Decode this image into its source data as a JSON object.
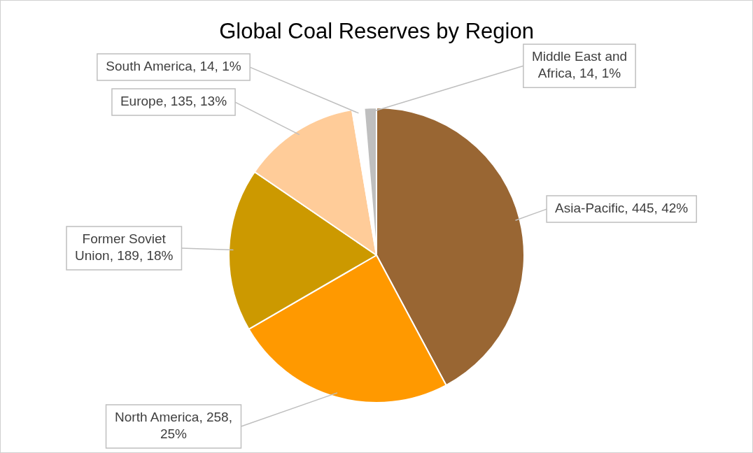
{
  "chart_data": {
    "type": "pie",
    "title": "Global Coal Reserves by Region",
    "categories": [
      "Asia-Pacific",
      "North America",
      "Former Soviet Union",
      "Europe",
      "South America",
      "Middle East and Africa"
    ],
    "values": [
      445,
      258,
      189,
      135,
      14,
      14
    ],
    "value_labels": [
      "445, 42%",
      "258, 25%",
      "189, 18%",
      "135, 13%",
      "14, 1%",
      "14, 1%"
    ],
    "colors": [
      "#996633",
      "#ff9900",
      "#cc9900",
      "#ffcc99",
      "#ffffff",
      "#bfbfbf"
    ],
    "legend": false
  }
}
